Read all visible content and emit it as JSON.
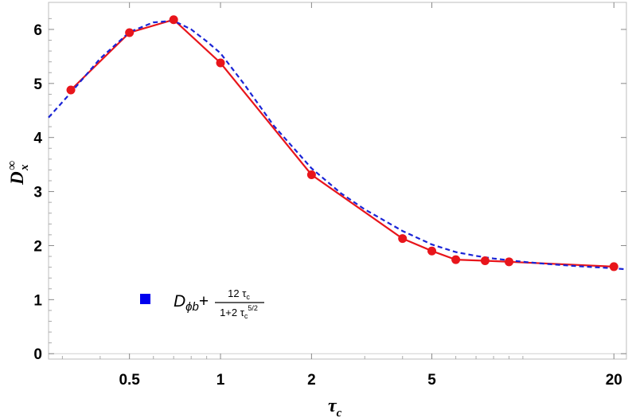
{
  "chart_data": {
    "type": "line",
    "title": "",
    "xlabel": "τ",
    "xlabel_sub": "c",
    "ylabel": "D",
    "ylabel_sup": "∞",
    "ylabel_sub": "x",
    "x_scale": "log",
    "xlim": [
      0.27,
      22
    ],
    "ylim": [
      -0.1,
      6.5
    ],
    "x_ticks": [
      {
        "value": 0.5,
        "label": "0.5"
      },
      {
        "value": 1,
        "label": "1"
      },
      {
        "value": 2,
        "label": "2"
      },
      {
        "value": 5,
        "label": "5"
      },
      {
        "value": 20,
        "label": "20"
      }
    ],
    "y_ticks": [
      {
        "value": 0,
        "label": "0"
      },
      {
        "value": 1,
        "label": "1"
      },
      {
        "value": 2,
        "label": "2"
      },
      {
        "value": 3,
        "label": "3"
      },
      {
        "value": 4,
        "label": "4"
      },
      {
        "value": 5,
        "label": "5"
      },
      {
        "value": 6,
        "label": "6"
      }
    ],
    "grid": false,
    "series": [
      {
        "style": "solid-markers",
        "color": "#e8151b",
        "x": [
          0.32,
          0.5,
          0.7,
          1.0,
          2.0,
          4.0,
          5.0,
          6.0,
          7.5,
          9.0,
          20.0
        ],
        "y": [
          4.88,
          5.94,
          6.18,
          5.38,
          3.31,
          2.13,
          1.9,
          1.74,
          1.72,
          1.7,
          1.61
        ]
      },
      {
        "style": "dashed",
        "color": "#1a24d6",
        "x": [
          0.27,
          0.32,
          0.4,
          0.5,
          0.6,
          0.7,
          0.8,
          0.9,
          1.0,
          1.2,
          1.5,
          2.0,
          2.5,
          3.0,
          4.0,
          5.0,
          6.0,
          7.0,
          8.0,
          10.0,
          12.0,
          15.0,
          20.0,
          22.0
        ],
        "y": [
          4.37,
          4.83,
          5.46,
          5.95,
          6.13,
          6.16,
          6.0,
          5.78,
          5.56,
          4.98,
          4.22,
          3.43,
          2.97,
          2.67,
          2.27,
          2.02,
          1.88,
          1.81,
          1.76,
          1.7,
          1.66,
          1.62,
          1.58,
          1.56
        ]
      }
    ],
    "legend": {
      "placement": "bottom-left",
      "marker_color": "#0000ee",
      "label_main": "D",
      "label_sub": "ϕb",
      "label_plus": "+",
      "frac_numerator": "12 τ",
      "frac_numerator_sub": "c",
      "frac_denominator": "1+2 τ",
      "frac_denominator_sub": "c",
      "frac_denominator_sup": "5/2"
    }
  }
}
